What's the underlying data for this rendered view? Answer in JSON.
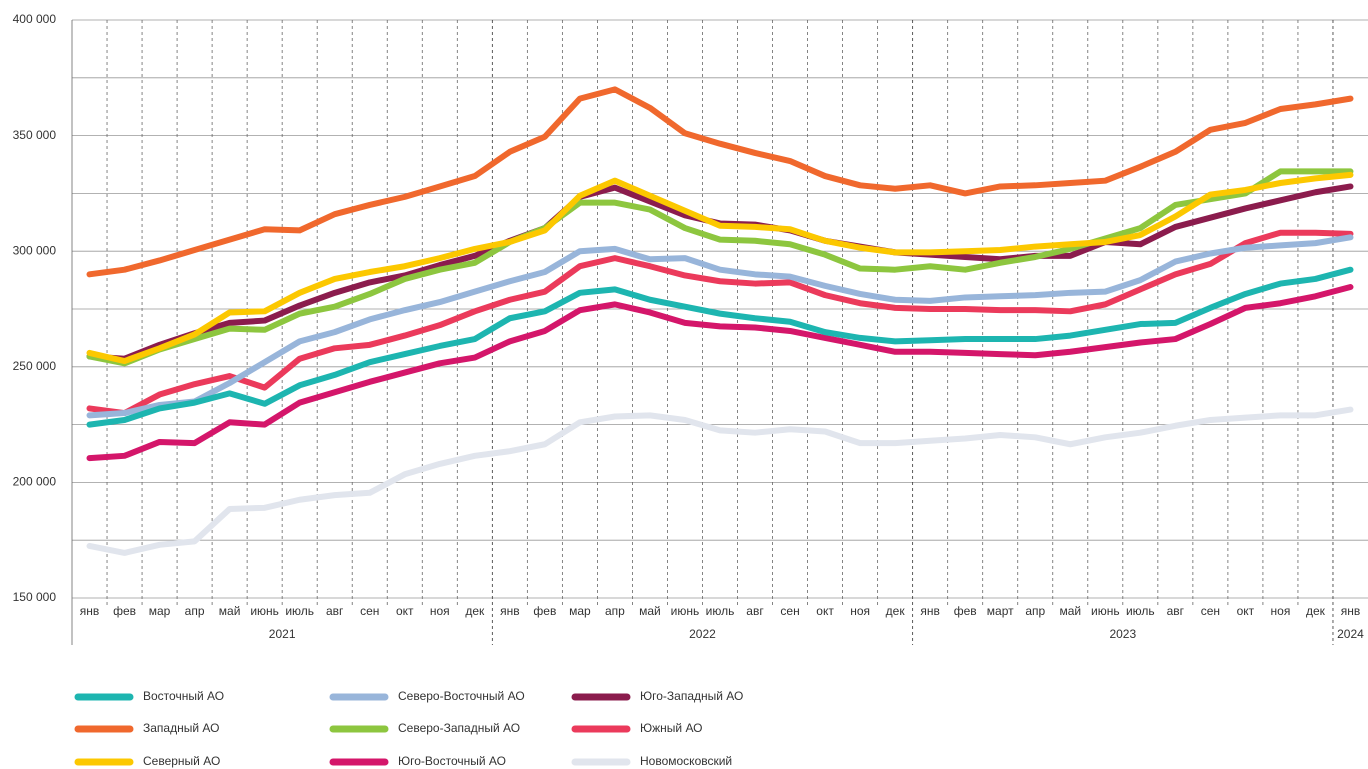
{
  "chart_data": {
    "type": "line",
    "categories": [
      "янв",
      "фев",
      "мар",
      "апр",
      "май",
      "июнь",
      "июль",
      "авг",
      "сен",
      "окт",
      "ноя",
      "дек",
      "янв",
      "фев",
      "мар",
      "апр",
      "май",
      "июнь",
      "июль",
      "авг",
      "сен",
      "окт",
      "ноя",
      "дек",
      "янв",
      "фев",
      "март",
      "апр",
      "май",
      "июнь",
      "июль",
      "авг",
      "сен",
      "окт",
      "ноя",
      "дек",
      "янв"
    ],
    "year_groups": [
      {
        "label": "2021",
        "count": 12
      },
      {
        "label": "2022",
        "count": 12
      },
      {
        "label": "2023",
        "count": 12
      },
      {
        "label": "2024",
        "count": 1
      }
    ],
    "ylim": [
      150000,
      400000
    ],
    "yticks": [
      {
        "value": 150000,
        "label": "150 000"
      },
      {
        "value": 200000,
        "label": "200 000"
      },
      {
        "value": 250000,
        "label": "250 000"
      },
      {
        "value": 300000,
        "label": "300 000"
      },
      {
        "value": 350000,
        "label": "350 000"
      },
      {
        "value": 400000,
        "label": "400 000"
      }
    ],
    "minor_yticks": [
      175000,
      225000,
      275000,
      325000,
      375000
    ],
    "grid": true,
    "series": [
      {
        "name": "Восточный АО",
        "color": "#1db5b0",
        "values": [
          225000,
          227000,
          232000,
          234500,
          238500,
          234000,
          242000,
          246500,
          252000,
          255500,
          259000,
          262000,
          271000,
          274000,
          282000,
          283500,
          279000,
          276000,
          273000,
          271000,
          269500,
          265000,
          262500,
          261000,
          261500,
          262000,
          262000,
          262000,
          263500,
          266000,
          268500,
          269000,
          275500,
          281500,
          286000,
          288000,
          292000
        ]
      },
      {
        "name": "Западный АО",
        "color": "#f0682d",
        "values": [
          290000,
          292000,
          296000,
          300500,
          305000,
          309500,
          309000,
          316000,
          320000,
          323500,
          328000,
          332500,
          343000,
          349500,
          366000,
          370000,
          362000,
          351000,
          346500,
          342500,
          339000,
          332500,
          328500,
          327000,
          328500,
          325000,
          328000,
          328500,
          329500,
          330500,
          336500,
          343000,
          352500,
          355500,
          361500,
          363500,
          366000
        ]
      },
      {
        "name": "Северный АО",
        "color": "#fcc800",
        "values": [
          256000,
          252500,
          258000,
          264000,
          273500,
          274000,
          282000,
          288000,
          291000,
          293500,
          297000,
          301000,
          304000,
          309000,
          324000,
          330500,
          324000,
          317500,
          311000,
          310500,
          309500,
          304500,
          301500,
          299500,
          299500,
          300000,
          300500,
          302000,
          303000,
          304000,
          307000,
          315000,
          324500,
          326500,
          329500,
          331500,
          333000
        ]
      },
      {
        "name": "Северо-Восточный АО",
        "color": "#98b5da",
        "values": [
          229000,
          230000,
          233500,
          235000,
          243000,
          252000,
          261000,
          265000,
          270500,
          274500,
          278000,
          282500,
          287000,
          291000,
          300000,
          301000,
          296500,
          297000,
          292000,
          290000,
          289000,
          285000,
          281500,
          279000,
          278500,
          280000,
          280500,
          281000,
          282000,
          282500,
          287500,
          295500,
          299000,
          301500,
          302500,
          303500,
          306000
        ]
      },
      {
        "name": "Северо-Западный АО",
        "color": "#8dc63f",
        "values": [
          254500,
          251500,
          257500,
          262000,
          266500,
          266000,
          273000,
          276000,
          281500,
          288000,
          292000,
          295000,
          304000,
          310000,
          321000,
          321000,
          318000,
          310000,
          305000,
          304500,
          303000,
          298500,
          292500,
          292000,
          293500,
          292000,
          295000,
          297500,
          301000,
          305500,
          310000,
          320000,
          322500,
          325000,
          334500,
          334500,
          334500
        ]
      },
      {
        "name": "Юго-Восточный АО",
        "color": "#d4166a",
        "values": [
          210500,
          211500,
          217500,
          217000,
          226000,
          225000,
          234500,
          239000,
          243500,
          247500,
          251500,
          254000,
          261000,
          265500,
          274500,
          277000,
          273500,
          269000,
          267500,
          267000,
          265500,
          262500,
          259500,
          256500,
          256500,
          256000,
          255500,
          255000,
          256500,
          258500,
          260500,
          262000,
          268500,
          275500,
          277500,
          280500,
          284500
        ]
      },
      {
        "name": "Юго-Западный АО",
        "color": "#8b1c4d",
        "values": [
          254500,
          253500,
          259500,
          264500,
          269000,
          270000,
          276500,
          282000,
          286500,
          289500,
          294000,
          298000,
          304500,
          310000,
          323500,
          327500,
          321500,
          315500,
          312000,
          311500,
          309000,
          304500,
          302000,
          299500,
          298500,
          297500,
          296500,
          298000,
          298000,
          304000,
          303000,
          310500,
          314500,
          318500,
          322000,
          325500,
          328000
        ]
      },
      {
        "name": "Южный АО",
        "color": "#eb3a5b",
        "values": [
          232000,
          230000,
          238000,
          242500,
          246000,
          241000,
          253500,
          258000,
          259500,
          263500,
          268000,
          274000,
          279000,
          282500,
          293500,
          297000,
          293500,
          289500,
          287000,
          286000,
          286500,
          281000,
          277500,
          275500,
          275000,
          275000,
          274500,
          274500,
          274000,
          277000,
          283500,
          290000,
          294500,
          303500,
          308000,
          308000,
          307500
        ]
      },
      {
        "name": "Новомосковский",
        "color": "#e1e5ed",
        "values": [
          172500,
          169500,
          173000,
          174500,
          188500,
          189000,
          192500,
          194500,
          195500,
          203500,
          208000,
          211500,
          213500,
          216500,
          226000,
          228500,
          229000,
          227000,
          222500,
          221500,
          223000,
          222000,
          217000,
          217000,
          218000,
          219000,
          220500,
          219500,
          216500,
          219500,
          221500,
          224500,
          227000,
          228000,
          229000,
          229000,
          231500
        ]
      }
    ]
  }
}
